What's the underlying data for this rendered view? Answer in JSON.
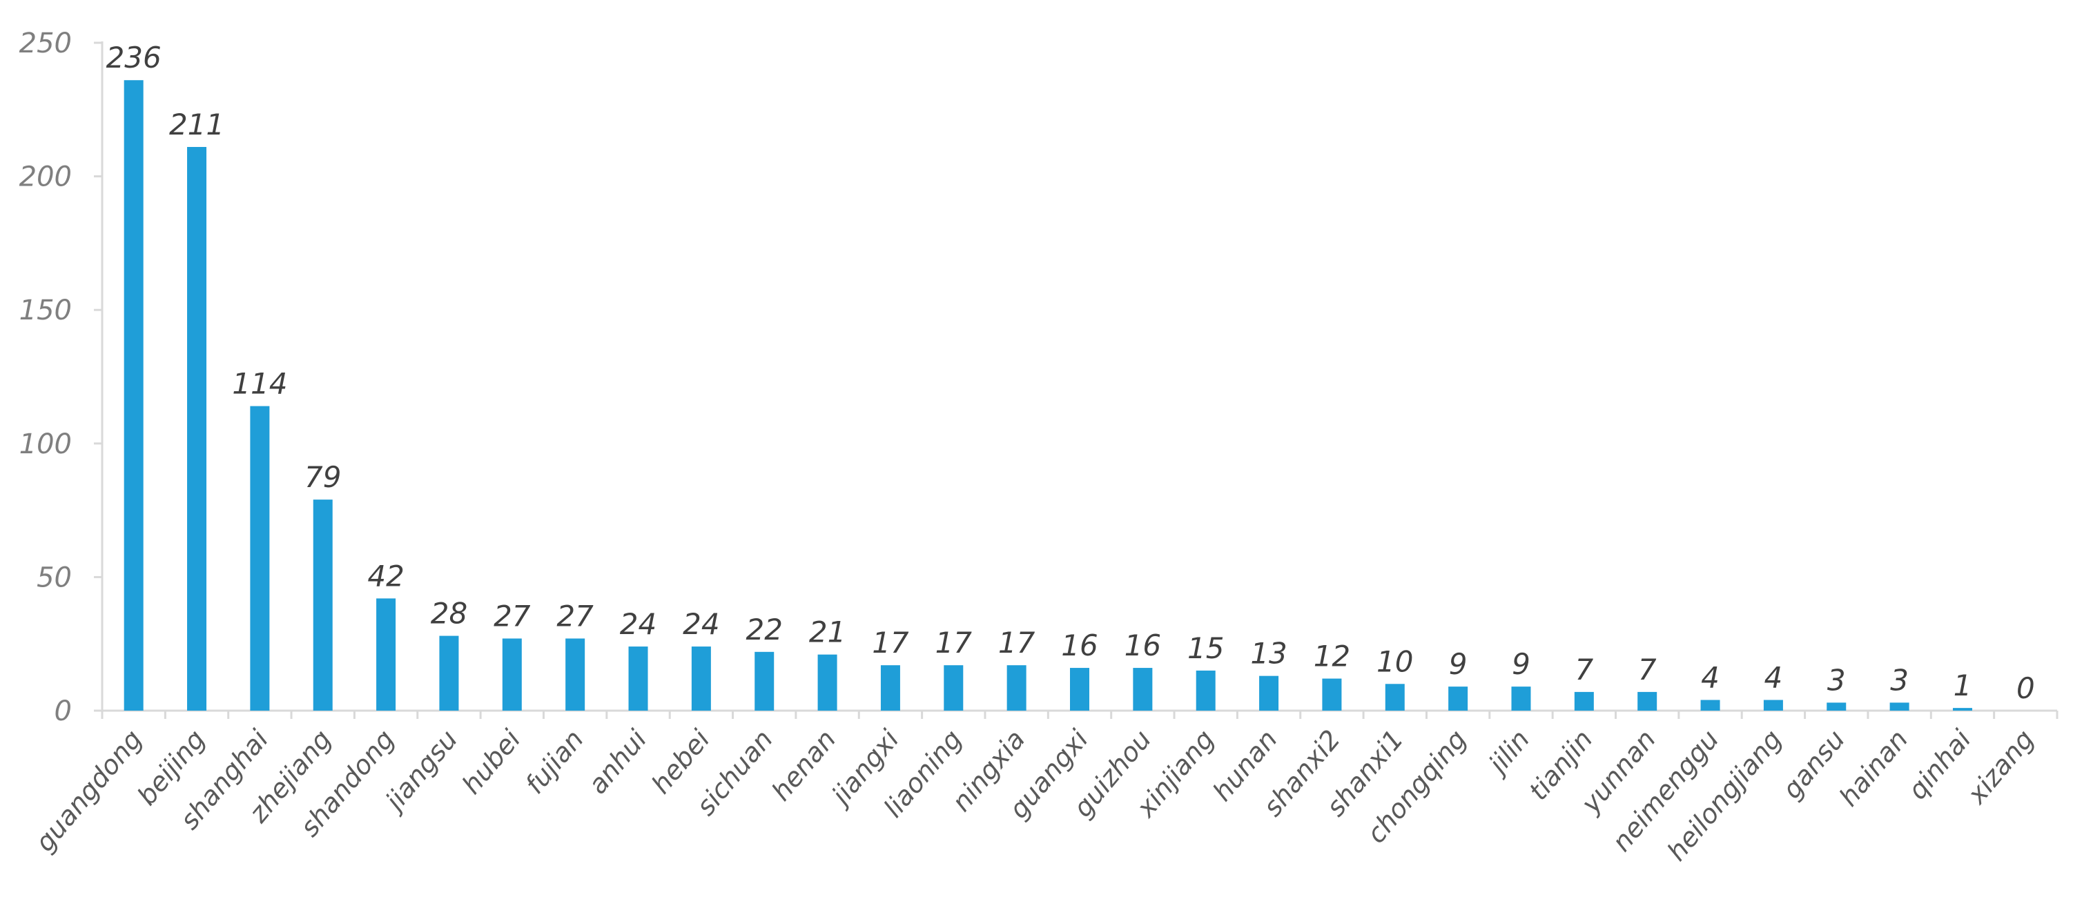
{
  "chart_data": {
    "type": "bar",
    "title": "",
    "xlabel": "",
    "ylabel": "",
    "ylim": [
      0,
      250
    ],
    "yticks": [
      0,
      50,
      100,
      150,
      200,
      250
    ],
    "grid": false,
    "legend": "none",
    "bar_color": "#1f9ed8",
    "categories": [
      "guangdong",
      "beijing",
      "shanghai",
      "zhejiang",
      "shandong",
      "jiangsu",
      "hubei",
      "fujian",
      "anhui",
      "hebei",
      "sichuan",
      "henan",
      "jiangxi",
      "liaoning",
      "ningxia",
      "guangxi",
      "guizhou",
      "xinjiang",
      "hunan",
      "shanxi2",
      "shanxi1",
      "chongqing",
      "jilin",
      "tianjin",
      "yunnan",
      "neimenggu",
      "heilongjiang",
      "gansu",
      "hainan",
      "qinhai",
      "xizang"
    ],
    "values": [
      236,
      211,
      114,
      79,
      42,
      28,
      27,
      27,
      24,
      24,
      22,
      21,
      17,
      17,
      17,
      16,
      16,
      15,
      13,
      12,
      10,
      9,
      9,
      7,
      7,
      4,
      4,
      3,
      3,
      1,
      0
    ]
  }
}
